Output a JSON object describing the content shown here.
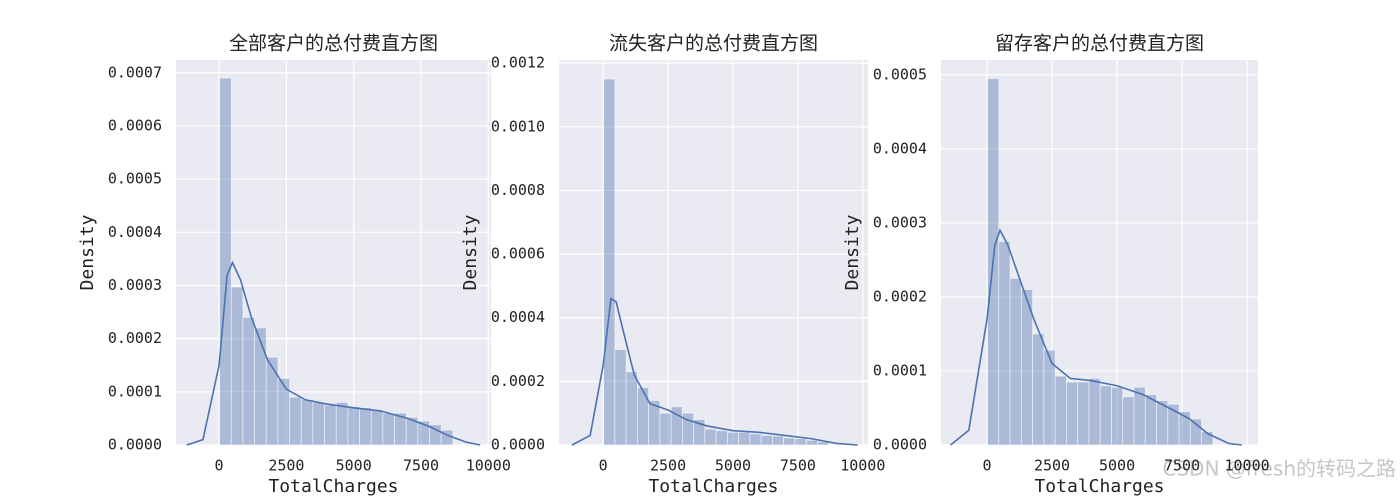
{
  "chart_data": [
    {
      "type": "histogram",
      "title": "全部客户的总付费直方图",
      "xlabel": "TotalCharges",
      "ylabel": "Density",
      "bins": [
        19,
        452,
        885,
        1319,
        1752,
        2185,
        2619,
        3052,
        3485,
        3918,
        4352,
        4785,
        5218,
        5652,
        6085,
        6518,
        6951,
        7385,
        7818,
        8251,
        8685
      ],
      "values": [
        0.00069,
        0.000297,
        0.00024,
        0.00022,
        0.000165,
        0.000125,
        9e-05,
        8.5e-05,
        8e-05,
        7.5e-05,
        8e-05,
        7.2e-05,
        7e-05,
        6.5e-05,
        6e-05,
        6e-05,
        5.2e-05,
        4.5e-05,
        3.8e-05,
        2.8e-05
      ],
      "kde": {
        "x": [
          -1200,
          -600,
          0,
          300,
          500,
          800,
          1200,
          1800,
          2500,
          3200,
          4000,
          5000,
          6000,
          7000,
          7800,
          8500,
          9200,
          9700
        ],
        "y": [
          0,
          1e-05,
          0.00015,
          0.00032,
          0.000343,
          0.00031,
          0.00024,
          0.00016,
          0.000105,
          8.5e-05,
          7.7e-05,
          7e-05,
          6.4e-05,
          5e-05,
          3.5e-05,
          1.8e-05,
          5e-06,
          0
        ]
      },
      "color": "#4c72b0",
      "grid": true,
      "xlim": [
        -1600,
        10100
      ],
      "xticks": [
        0,
        2500,
        5000,
        7500,
        10000
      ],
      "ylim": [
        0,
        0.000724
      ],
      "yticks": [
        {
          "value": 0,
          "label": "0.0000"
        },
        {
          "value": 0.0001,
          "label": "0.0001"
        },
        {
          "value": 0.0002,
          "label": "0.0002"
        },
        {
          "value": 0.0003,
          "label": "0.0003"
        },
        {
          "value": 0.0004,
          "label": "0.0004"
        },
        {
          "value": 0.0005,
          "label": "0.0005"
        },
        {
          "value": 0.0006,
          "label": "0.0006"
        },
        {
          "value": 0.0007,
          "label": "0.0007"
        }
      ]
    },
    {
      "type": "histogram",
      "title": "流失客户的总付费直方图",
      "xlabel": "TotalCharges",
      "ylabel": "Density",
      "bins": [
        19,
        452,
        885,
        1319,
        1752,
        2185,
        2619,
        3052,
        3485,
        3918,
        4352,
        4785,
        5218,
        5652,
        6085,
        6518,
        6951,
        7385,
        7818,
        8251,
        8685
      ],
      "values": [
        0.00115,
        0.0003,
        0.00023,
        0.00018,
        0.00014,
        0.0001,
        0.00012,
        0.0001,
        8e-05,
        5e-05,
        4.5e-05,
        4e-05,
        4e-05,
        3.5e-05,
        3e-05,
        2.8e-05,
        2.2e-05,
        2e-05,
        1.5e-05,
        1e-05
      ],
      "kde": {
        "x": [
          -1200,
          -500,
          0,
          300,
          500,
          800,
          1200,
          1800,
          2500,
          3200,
          4000,
          5000,
          6000,
          7000,
          8000,
          9000,
          9800
        ],
        "y": [
          0,
          3e-05,
          0.00025,
          0.00046,
          0.00045,
          0.00035,
          0.00022,
          0.00013,
          0.00011,
          8e-05,
          6e-05,
          4.5e-05,
          4e-05,
          3e-05,
          2e-05,
          5e-06,
          0
        ]
      },
      "color": "#4c72b0",
      "grid": true,
      "xlim": [
        -1700,
        10200
      ],
      "xticks": [
        0,
        2500,
        5000,
        7500,
        10000
      ],
      "ylim": [
        0,
        0.00121
      ],
      "yticks": [
        {
          "value": 0,
          "label": "0.0000"
        },
        {
          "value": 0.0002,
          "label": "0.0002"
        },
        {
          "value": 0.0004,
          "label": "0.0004"
        },
        {
          "value": 0.0006,
          "label": "0.0006"
        },
        {
          "value": 0.0008,
          "label": "0.0008"
        },
        {
          "value": 0.001,
          "label": "0.0010"
        },
        {
          "value": 0.0012,
          "label": "0.0012"
        }
      ]
    },
    {
      "type": "histogram",
      "title": "留存客户的总付费直方图",
      "xlabel": "TotalCharges",
      "ylabel": "Density",
      "bins": [
        19,
        452,
        885,
        1319,
        1752,
        2185,
        2619,
        3052,
        3485,
        3918,
        4352,
        4785,
        5218,
        5652,
        6085,
        6518,
        6951,
        7385,
        7818,
        8251,
        8685
      ],
      "values": [
        0.000495,
        0.000275,
        0.000225,
        0.00021,
        0.00015,
        0.000128,
        9.3e-05,
        8.5e-05,
        8.5e-05,
        9e-05,
        8e-05,
        7.8e-05,
        6.5e-05,
        7.8e-05,
        6.8e-05,
        6e-05,
        5.5e-05,
        4.5e-05,
        3.5e-05,
        1.8e-05
      ],
      "kde": {
        "x": [
          -1400,
          -700,
          0,
          300,
          500,
          800,
          1200,
          1800,
          2500,
          3200,
          4000,
          5000,
          6000,
          7000,
          7800,
          8500,
          9300,
          9800
        ],
        "y": [
          0,
          2e-05,
          0.00017,
          0.00027,
          0.00029,
          0.00027,
          0.00023,
          0.00017,
          0.00011,
          9e-05,
          8.7e-05,
          8e-05,
          6.8e-05,
          5e-05,
          3.5e-05,
          1.5e-05,
          2e-06,
          0
        ]
      },
      "color": "#4c72b0",
      "grid": true,
      "xlim": [
        -1770,
        10420
      ],
      "xticks": [
        0,
        2500,
        5000,
        7500,
        10000
      ],
      "ylim": [
        0,
        0.00052
      ],
      "yticks": [
        {
          "value": 0,
          "label": "0.0000"
        },
        {
          "value": 0.0001,
          "label": "0.0001"
        },
        {
          "value": 0.0002,
          "label": "0.0002"
        },
        {
          "value": 0.0003,
          "label": "0.0003"
        },
        {
          "value": 0.0004,
          "label": "0.0004"
        },
        {
          "value": 0.0005,
          "label": "0.0005"
        }
      ]
    }
  ],
  "watermark": "CSDN @fresh的转码之路"
}
